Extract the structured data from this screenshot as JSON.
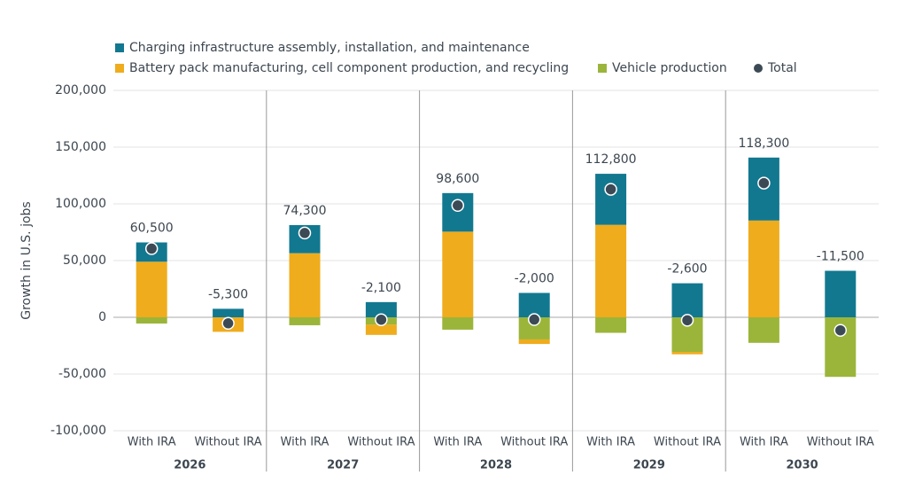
{
  "chart_data": {
    "type": "bar",
    "stacked": true,
    "ylabel": "Growth in U.S. jobs",
    "categories": [
      "With IRA",
      "Without IRA",
      "With IRA",
      "Without IRA",
      "With IRA",
      "Without IRA",
      "With IRA",
      "Without IRA",
      "With IRA",
      "Without IRA"
    ],
    "groups": [
      "2026",
      "2027",
      "2028",
      "2029",
      "2030"
    ],
    "series": [
      {
        "name": "Charging infrastructure assembly, installation, and maintenance",
        "color": "#127890",
        "values": [
          17000,
          7500,
          24800,
          13400,
          34000,
          21500,
          45000,
          30000,
          55500,
          41000
        ]
      },
      {
        "name": "Battery pack manufacturing, cell component production, and recycling",
        "color": "#efac1d",
        "values": [
          49000,
          -12800,
          56500,
          -9000,
          75500,
          -4000,
          81500,
          -2100,
          85300,
          0
        ]
      },
      {
        "name": "Vehicle production",
        "color": "#9bb53a",
        "values": [
          -5500,
          0,
          -7000,
          -6500,
          -10900,
          -19500,
          -13700,
          -30500,
          -22500,
          -52500
        ]
      }
    ],
    "total": {
      "name": "Total",
      "color": "#3c4a56",
      "values": [
        60500,
        -5300,
        74300,
        -2100,
        98600,
        -2000,
        112800,
        -2600,
        118300,
        -11500
      ],
      "value_labels": [
        "60,500",
        "-5,300",
        "74,300",
        "-2,100",
        "98,600",
        "-2,000",
        "112,800",
        "-2,600",
        "118,300",
        "-11,500"
      ]
    },
    "ylim": [
      -100000,
      200000
    ],
    "yticks": [
      {
        "value": -100000,
        "label": "-100,000"
      },
      {
        "value": -50000,
        "label": "-50,000"
      },
      0,
      {
        "value": 50000,
        "label": "50,000"
      },
      {
        "value": 100000,
        "label": "100,000"
      },
      {
        "value": 150000,
        "label": "150,000"
      },
      {
        "value": 200000,
        "label": "200,000"
      }
    ],
    "grid": true
  }
}
